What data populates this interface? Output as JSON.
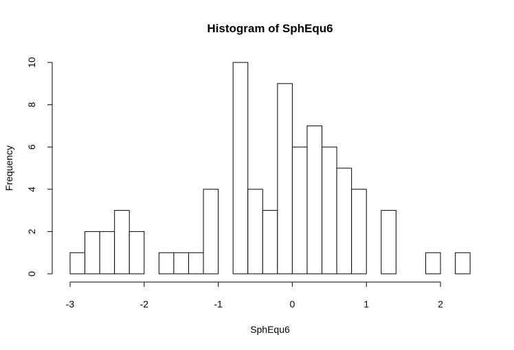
{
  "chart_data": {
    "type": "bar",
    "title": "Histogram of SphEqu6",
    "xlabel": "SphEqu6",
    "ylabel": "Frequency",
    "bin_width": 0.2,
    "bins": [
      {
        "start": -3.0,
        "end": -2.8,
        "count": 1
      },
      {
        "start": -2.8,
        "end": -2.6,
        "count": 2
      },
      {
        "start": -2.6,
        "end": -2.4,
        "count": 2
      },
      {
        "start": -2.4,
        "end": -2.2,
        "count": 3
      },
      {
        "start": -2.2,
        "end": -2.0,
        "count": 2
      },
      {
        "start": -2.0,
        "end": -1.8,
        "count": 0
      },
      {
        "start": -1.8,
        "end": -1.6,
        "count": 1
      },
      {
        "start": -1.6,
        "end": -1.4,
        "count": 1
      },
      {
        "start": -1.4,
        "end": -1.2,
        "count": 1
      },
      {
        "start": -1.2,
        "end": -1.0,
        "count": 4
      },
      {
        "start": -1.0,
        "end": -0.8,
        "count": 0
      },
      {
        "start": -0.8,
        "end": -0.6,
        "count": 10
      },
      {
        "start": -0.6,
        "end": -0.4,
        "count": 4
      },
      {
        "start": -0.4,
        "end": -0.2,
        "count": 3
      },
      {
        "start": -0.2,
        "end": 0.0,
        "count": 9
      },
      {
        "start": 0.0,
        "end": 0.2,
        "count": 6
      },
      {
        "start": 0.2,
        "end": 0.4,
        "count": 7
      },
      {
        "start": 0.4,
        "end": 0.6,
        "count": 6
      },
      {
        "start": 0.6,
        "end": 0.8,
        "count": 5
      },
      {
        "start": 0.8,
        "end": 1.0,
        "count": 4
      },
      {
        "start": 1.0,
        "end": 1.2,
        "count": 0
      },
      {
        "start": 1.2,
        "end": 1.4,
        "count": 3
      },
      {
        "start": 1.4,
        "end": 1.6,
        "count": 0
      },
      {
        "start": 1.6,
        "end": 1.8,
        "count": 0
      },
      {
        "start": 1.8,
        "end": 2.0,
        "count": 1
      },
      {
        "start": 2.0,
        "end": 2.2,
        "count": 0
      },
      {
        "start": 2.2,
        "end": 2.4,
        "count": 1
      }
    ],
    "xticks": [
      -3,
      -2,
      -1,
      0,
      1,
      2
    ],
    "xtick_labels": [
      "-3",
      "-2",
      "-1",
      "0",
      "1",
      "2"
    ],
    "yticks": [
      0,
      2,
      4,
      6,
      8,
      10
    ],
    "ytick_labels": [
      "0",
      "2",
      "4",
      "6",
      "8",
      "10"
    ],
    "xlim": [
      -3.0,
      2.4
    ],
    "ylim": [
      0,
      10
    ],
    "grid": false,
    "legend": "none",
    "bar_fill": "#ffffff",
    "bar_stroke": "#000000"
  }
}
